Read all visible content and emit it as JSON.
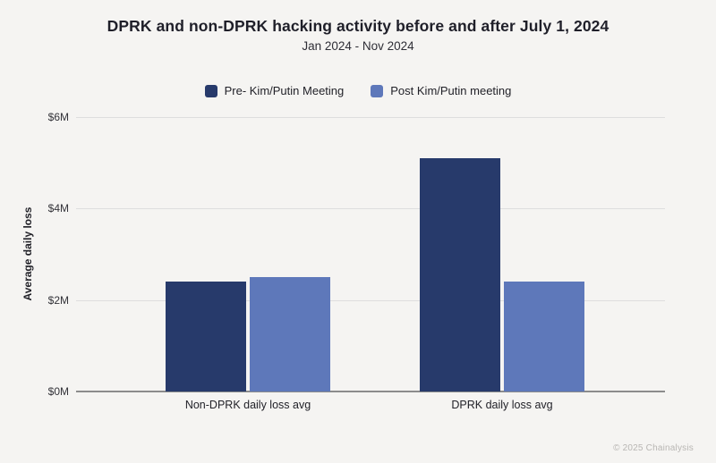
{
  "header": {
    "title": "DPRK and non-DPRK hacking activity before and after July 1, 2024",
    "subtitle": "Jan 2024 - Nov 2024"
  },
  "footer": {
    "copyright": "© 2025 Chainalysis"
  },
  "colors": {
    "background": "#f5f4f2",
    "pre_series": "#273a6b",
    "post_series": "#5e78ba",
    "gridline": "#dedede",
    "axis_line": "#8c8c8c",
    "title_text": "#1f1f29",
    "footer_text": "#b8b6b3"
  },
  "chart_data": {
    "type": "bar",
    "title": "DPRK and non-DPRK hacking activity before and after July 1, 2024",
    "subtitle": "Jan 2024 - Nov 2024",
    "categories": [
      "Non-DPRK daily loss avg",
      "DPRK daily loss avg"
    ],
    "series": [
      {
        "name": "Pre- Kim/Putin Meeting",
        "color": "#273a6b",
        "values": [
          2.4,
          5.1
        ]
      },
      {
        "name": "Post Kim/Putin meeting",
        "color": "#5e78ba",
        "values": [
          2.5,
          2.4
        ]
      }
    ],
    "xlabel": "",
    "ylabel": "Average daily loss",
    "units": "$M",
    "ylim": [
      0,
      6
    ],
    "yticks": [
      {
        "value": 6,
        "label": "$6M"
      },
      {
        "value": 4,
        "label": "$4M"
      },
      {
        "value": 2,
        "label": "$2M"
      },
      {
        "value": 0,
        "label": "$0M"
      }
    ],
    "grid": true,
    "legend_position": "top"
  }
}
